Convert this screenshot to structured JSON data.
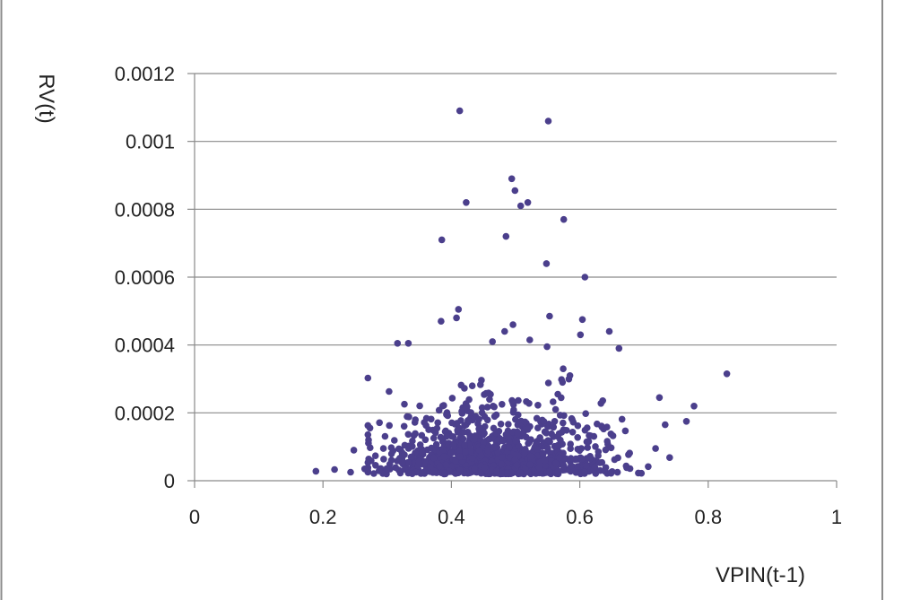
{
  "chart_data": {
    "type": "scatter",
    "title": "",
    "xlabel": "VPIN(t-1)",
    "ylabel": "RV(t)",
    "xlim": [
      0,
      1
    ],
    "ylim": [
      0,
      0.0012
    ],
    "x_ticks": [
      {
        "value": 0,
        "label": "0"
      },
      {
        "value": 0.2,
        "label": "0.2"
      },
      {
        "value": 0.4,
        "label": "0.4"
      },
      {
        "value": 0.6,
        "label": "0.6"
      },
      {
        "value": 0.8,
        "label": "0.8"
      },
      {
        "value": 1,
        "label": "1"
      }
    ],
    "y_ticks": [
      {
        "value": 0,
        "label": "0"
      },
      {
        "value": 0.0002,
        "label": "0.0002"
      },
      {
        "value": 0.0004,
        "label": "0.0004"
      },
      {
        "value": 0.0006,
        "label": "0.0006"
      },
      {
        "value": 0.0008,
        "label": "0.0008"
      },
      {
        "value": 0.001,
        "label": "0.001"
      },
      {
        "value": 0.0012,
        "label": "0.0012"
      }
    ],
    "grid": {
      "horizontal": true,
      "vertical": false
    },
    "legend": "none",
    "marker_color": "#4b3f8c",
    "series": [
      {
        "points": [
          [
            0.413,
            0.00109
          ],
          [
            0.551,
            0.00106
          ],
          [
            0.494,
            0.00089
          ],
          [
            0.499,
            0.000855
          ],
          [
            0.423,
            0.00082
          ],
          [
            0.519,
            0.00082
          ],
          [
            0.508,
            0.00081
          ],
          [
            0.575,
            0.00077
          ],
          [
            0.385,
            0.00071
          ],
          [
            0.485,
            0.00072
          ],
          [
            0.548,
            0.00064
          ],
          [
            0.608,
            0.0006
          ],
          [
            0.411,
            0.000505
          ],
          [
            0.408,
            0.00048
          ],
          [
            0.384,
            0.00047
          ],
          [
            0.553,
            0.000485
          ],
          [
            0.604,
            0.000475
          ],
          [
            0.496,
            0.00046
          ],
          [
            0.483,
            0.00044
          ],
          [
            0.646,
            0.00044
          ],
          [
            0.601,
            0.00043
          ],
          [
            0.316,
            0.000405
          ],
          [
            0.333,
            0.000405
          ],
          [
            0.464,
            0.00041
          ],
          [
            0.522,
            0.000415
          ],
          [
            0.549,
            0.000395
          ],
          [
            0.661,
            0.00039
          ],
          [
            0.829,
            0.000315
          ],
          [
            0.778,
            0.00022
          ],
          [
            0.724,
            0.000245
          ],
          [
            0.766,
            0.000175
          ],
          [
            0.733,
            0.000165
          ],
          [
            0.718,
            9.5e-05
          ],
          [
            0.189,
            2.8e-05
          ],
          [
            0.218,
            3.3e-05
          ],
          [
            0.243,
            2.5e-05
          ],
          [
            0.248,
            9e-05
          ],
          [
            0.265,
            3.5e-05
          ],
          [
            0.271,
            0.00012
          ]
        ]
      }
    ],
    "cluster": {
      "count": 1150,
      "seed": 7,
      "x_mean": 0.47,
      "x_sd": 0.085,
      "y_floor": 2e-05,
      "y_scale": 6e-05
    }
  }
}
